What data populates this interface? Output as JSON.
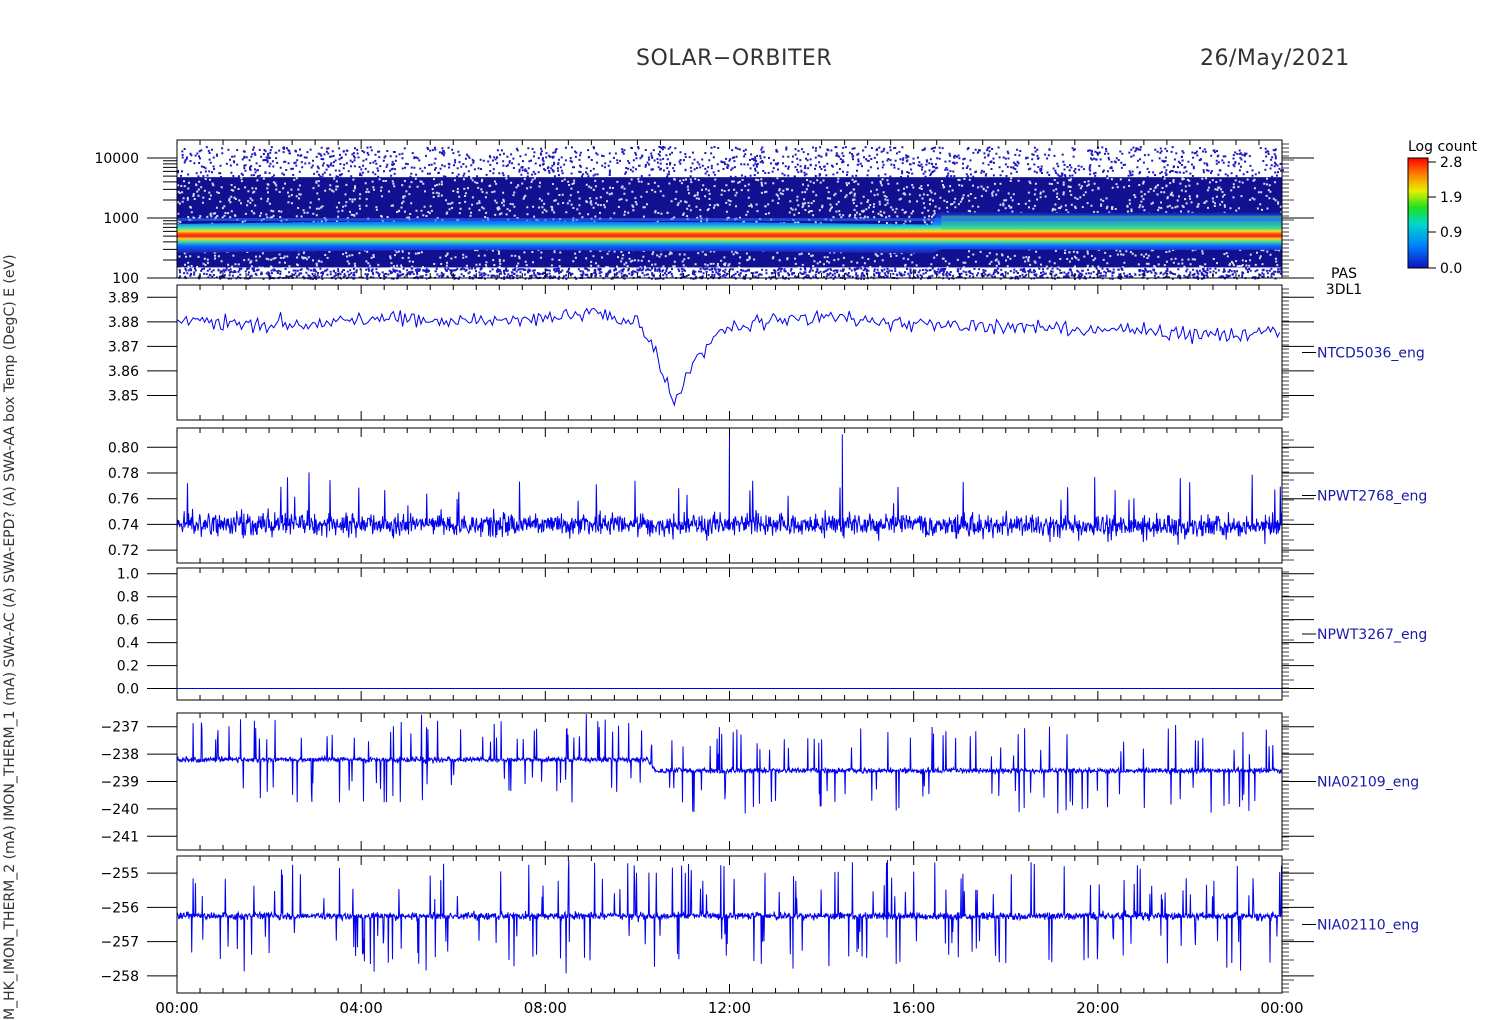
{
  "header": {
    "title": "SOLAR−ORBITER",
    "date": "26/May/2021"
  },
  "colors": {
    "trace": "#0000ee",
    "axis": "#000000",
    "label": "#1a1aa6"
  },
  "colorbar": {
    "title": "Log count",
    "ticks": [
      "2.8",
      "1.9",
      "0.9",
      "0.0"
    ],
    "range": [
      0.0,
      2.8
    ]
  },
  "chart_data": [
    {
      "type": "heatmap",
      "name": "PAS 3DL1",
      "side_label_lines": [
        "PAS",
        "3DL1"
      ],
      "ylabel": "E (eV)",
      "yscale": "log",
      "ylim": [
        100,
        20000
      ],
      "yticks": [
        "10000",
        "1000",
        "100"
      ],
      "xlim": [
        "00:00",
        "24:00"
      ],
      "band_center_eV": {
        "x_hours": [
          0,
          3,
          6,
          8,
          10,
          12,
          14,
          16.4,
          16.6,
          20,
          24
        ],
        "y": [
          420,
          450,
          470,
          470,
          450,
          450,
          430,
          410,
          480,
          470,
          470
        ]
      },
      "band_color_scale": "Log count 0.0 - 2.8"
    },
    {
      "type": "line",
      "name": "NTCD5036_eng",
      "ylabel": "SWA-AA box Temp (DegC)",
      "ylim": [
        3.84,
        3.895
      ],
      "yticks": [
        "3.89",
        "3.88",
        "3.87",
        "3.86",
        "3.85"
      ],
      "series": [
        {
          "name": "NTCD5036_eng",
          "x_hours": [
            0,
            2,
            4,
            6,
            8,
            9,
            10,
            10.3,
            10.8,
            11.3,
            12,
            14,
            16,
            18,
            20,
            22,
            24
          ],
          "values": [
            3.881,
            3.879,
            3.881,
            3.88,
            3.881,
            3.884,
            3.88,
            3.872,
            3.848,
            3.866,
            3.879,
            3.882,
            3.879,
            3.878,
            3.877,
            3.875,
            3.876
          ]
        }
      ]
    },
    {
      "type": "line",
      "name": "NPWT2768_eng",
      "ylabel": "SWA-EPD? (A)",
      "ylim": [
        0.71,
        0.815
      ],
      "yticks": [
        "0.80",
        "0.78",
        "0.76",
        "0.74",
        "0.72"
      ],
      "series": [
        {
          "name": "NPWT2768_eng",
          "x_hours": [
            0,
            12,
            14.45,
            24
          ],
          "values": [
            0.74,
            0.74,
            0.74,
            0.738
          ],
          "spikes": [
            {
              "x_hours": 12.0,
              "value": 0.808
            },
            {
              "x_hours": 14.45,
              "value": 0.81
            }
          ]
        }
      ]
    },
    {
      "type": "line",
      "name": "NPWT3267_eng",
      "ylabel": "SWA-AC (A)",
      "ylim": [
        -0.1,
        1.05
      ],
      "yticks": [
        "1.0",
        "0.8",
        "0.6",
        "0.4",
        "0.2",
        "0.0"
      ],
      "series": [
        {
          "name": "NPWT3267_eng",
          "x_hours": [
            0,
            24
          ],
          "values": [
            0.0,
            0.0
          ]
        }
      ]
    },
    {
      "type": "line",
      "name": "NIA02109_eng",
      "ylabel": "IMON_THERM_1 (mA)",
      "ylim": [
        -241.5,
        -236.5
      ],
      "yticks": [
        "−237",
        "−238",
        "−239",
        "−240",
        "−241"
      ],
      "series": [
        {
          "name": "NIA02109_eng",
          "x_hours": [
            0,
            10.2,
            10.4,
            24
          ],
          "values": [
            -238.2,
            -238.2,
            -238.6,
            -238.6
          ]
        }
      ]
    },
    {
      "type": "line",
      "name": "NIA02110_eng",
      "ylabel": "M_HK_IMON_THERM_2 (mA)",
      "ylim": [
        -258.5,
        -254.5
      ],
      "yticks": [
        "−255",
        "−256",
        "−257",
        "−258"
      ],
      "series": [
        {
          "name": "NIA02110_eng",
          "x_hours": [
            0,
            24
          ],
          "values": [
            -256.25,
            -256.25
          ]
        }
      ]
    }
  ],
  "left_axis_text": "M_HK_IMON_THERM_2 (mA)  IMON_THERM_1 (mA)  SWA-AC (A)  SWA-EPD? (A)  SWA-AA box Temp (DegC)  E (eV)",
  "xaxis": {
    "ticks": [
      "00:00",
      "04:00",
      "08:00",
      "12:00",
      "16:00",
      "20:00",
      "00:00"
    ]
  }
}
